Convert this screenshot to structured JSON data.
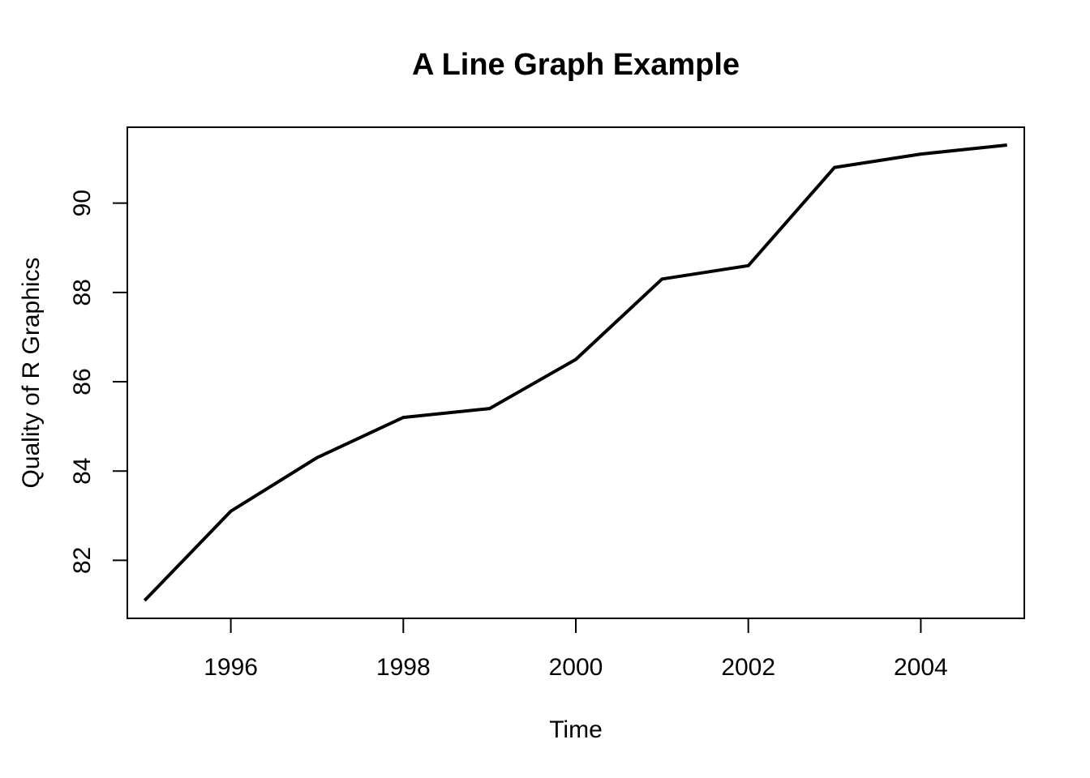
{
  "chart_data": {
    "type": "line",
    "title": "A Line Graph Example",
    "xlabel": "Time",
    "ylabel": "Quality of R Graphics",
    "x": [
      1995,
      1996,
      1997,
      1998,
      1999,
      2000,
      2001,
      2002,
      2003,
      2004,
      2005
    ],
    "series": [
      {
        "values": [
          81.1,
          83.1,
          84.3,
          85.2,
          85.4,
          86.5,
          88.3,
          88.6,
          90.8,
          91.1,
          91.3
        ]
      }
    ],
    "xlim": [
      1994.8,
      2005.2
    ],
    "ylim": [
      80.7,
      91.7
    ],
    "xticks": [
      1996,
      1998,
      2000,
      2002,
      2004
    ],
    "yticks": [
      82,
      84,
      86,
      88,
      90
    ],
    "grid": false,
    "line_color": "#000000"
  }
}
